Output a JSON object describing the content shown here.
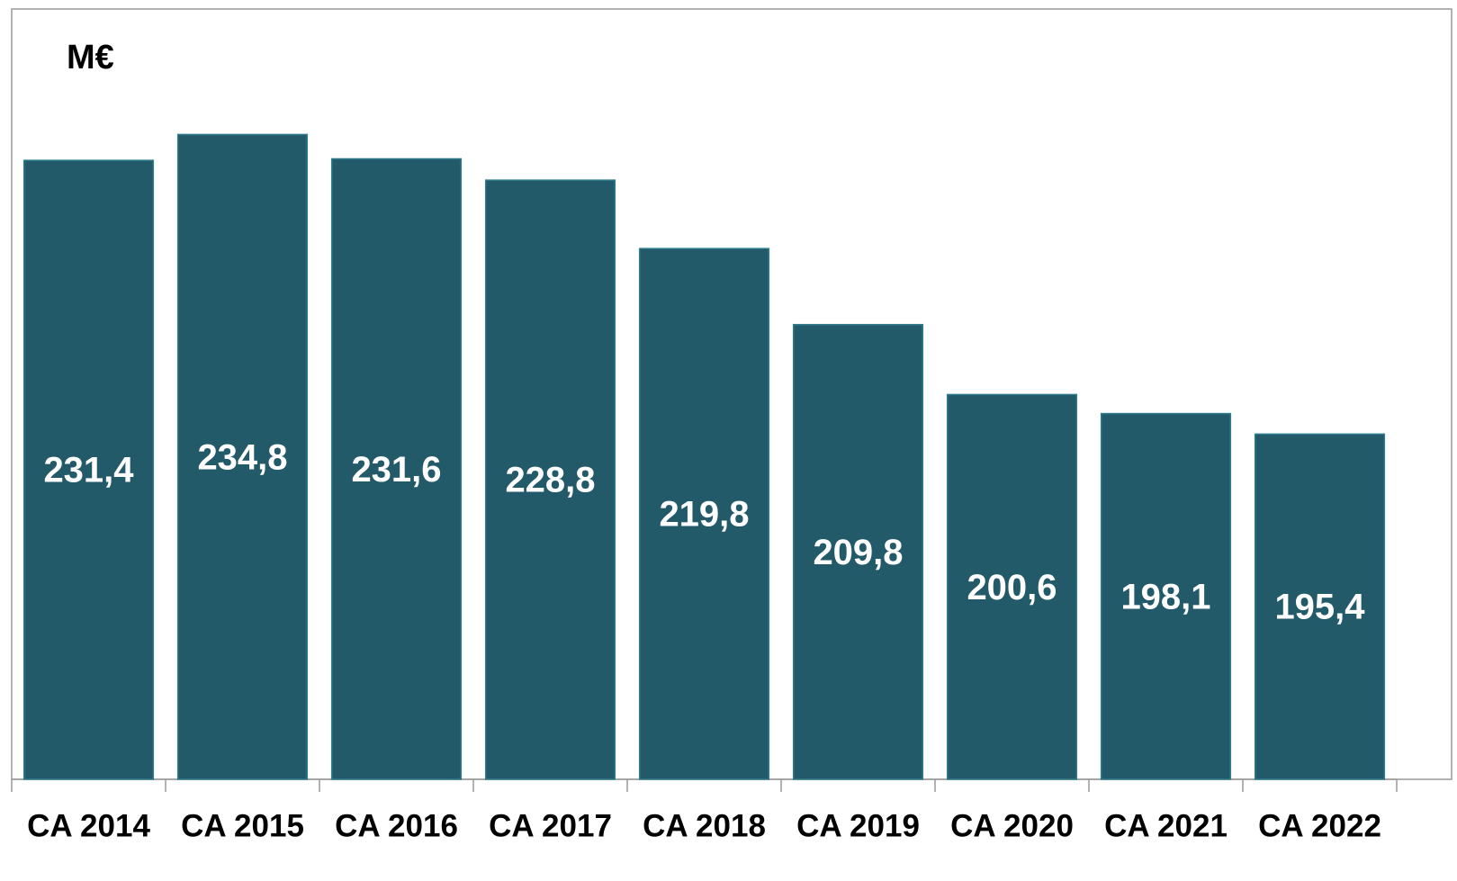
{
  "chart_data": {
    "type": "bar",
    "y_label": "M€",
    "categories": [
      "CA 2014",
      "CA 2015",
      "CA 2016",
      "CA 2017",
      "CA 2018",
      "CA 2019",
      "CA 2020",
      "CA 2021",
      "CA 2022"
    ],
    "values": [
      231.4,
      234.8,
      231.6,
      228.8,
      219.8,
      209.8,
      200.6,
      198.1,
      195.4
    ],
    "value_labels": [
      "231,4",
      "234,8",
      "231,6",
      "228,8",
      "219,8",
      "209,8",
      "200,6",
      "198,1",
      "195,4"
    ],
    "color": "#235a6a",
    "ylim": [
      150,
      250
    ]
  }
}
